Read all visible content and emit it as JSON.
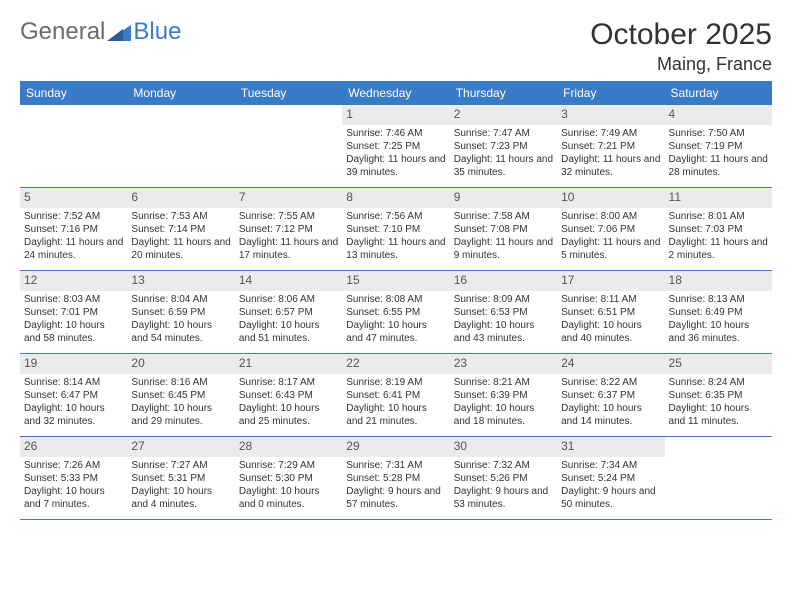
{
  "brand": {
    "part1": "General",
    "part2": "Blue"
  },
  "title": "October 2025",
  "location": "Maing, France",
  "colors": {
    "accent": "#3a7bc8",
    "header_bg": "#3a7bc8",
    "daynum_bg": "#ebebeb",
    "text": "#333333",
    "logo_gray": "#6b6b6b"
  },
  "day_headers": [
    "Sunday",
    "Monday",
    "Tuesday",
    "Wednesday",
    "Thursday",
    "Friday",
    "Saturday"
  ],
  "weeks": [
    [
      {
        "n": "",
        "sr": "",
        "ss": "",
        "dl": ""
      },
      {
        "n": "",
        "sr": "",
        "ss": "",
        "dl": ""
      },
      {
        "n": "",
        "sr": "",
        "ss": "",
        "dl": ""
      },
      {
        "n": "1",
        "sr": "Sunrise: 7:46 AM",
        "ss": "Sunset: 7:25 PM",
        "dl": "Daylight: 11 hours and 39 minutes."
      },
      {
        "n": "2",
        "sr": "Sunrise: 7:47 AM",
        "ss": "Sunset: 7:23 PM",
        "dl": "Daylight: 11 hours and 35 minutes."
      },
      {
        "n": "3",
        "sr": "Sunrise: 7:49 AM",
        "ss": "Sunset: 7:21 PM",
        "dl": "Daylight: 11 hours and 32 minutes."
      },
      {
        "n": "4",
        "sr": "Sunrise: 7:50 AM",
        "ss": "Sunset: 7:19 PM",
        "dl": "Daylight: 11 hours and 28 minutes."
      }
    ],
    [
      {
        "n": "5",
        "sr": "Sunrise: 7:52 AM",
        "ss": "Sunset: 7:16 PM",
        "dl": "Daylight: 11 hours and 24 minutes."
      },
      {
        "n": "6",
        "sr": "Sunrise: 7:53 AM",
        "ss": "Sunset: 7:14 PM",
        "dl": "Daylight: 11 hours and 20 minutes."
      },
      {
        "n": "7",
        "sr": "Sunrise: 7:55 AM",
        "ss": "Sunset: 7:12 PM",
        "dl": "Daylight: 11 hours and 17 minutes."
      },
      {
        "n": "8",
        "sr": "Sunrise: 7:56 AM",
        "ss": "Sunset: 7:10 PM",
        "dl": "Daylight: 11 hours and 13 minutes."
      },
      {
        "n": "9",
        "sr": "Sunrise: 7:58 AM",
        "ss": "Sunset: 7:08 PM",
        "dl": "Daylight: 11 hours and 9 minutes."
      },
      {
        "n": "10",
        "sr": "Sunrise: 8:00 AM",
        "ss": "Sunset: 7:06 PM",
        "dl": "Daylight: 11 hours and 5 minutes."
      },
      {
        "n": "11",
        "sr": "Sunrise: 8:01 AM",
        "ss": "Sunset: 7:03 PM",
        "dl": "Daylight: 11 hours and 2 minutes."
      }
    ],
    [
      {
        "n": "12",
        "sr": "Sunrise: 8:03 AM",
        "ss": "Sunset: 7:01 PM",
        "dl": "Daylight: 10 hours and 58 minutes."
      },
      {
        "n": "13",
        "sr": "Sunrise: 8:04 AM",
        "ss": "Sunset: 6:59 PM",
        "dl": "Daylight: 10 hours and 54 minutes."
      },
      {
        "n": "14",
        "sr": "Sunrise: 8:06 AM",
        "ss": "Sunset: 6:57 PM",
        "dl": "Daylight: 10 hours and 51 minutes."
      },
      {
        "n": "15",
        "sr": "Sunrise: 8:08 AM",
        "ss": "Sunset: 6:55 PM",
        "dl": "Daylight: 10 hours and 47 minutes."
      },
      {
        "n": "16",
        "sr": "Sunrise: 8:09 AM",
        "ss": "Sunset: 6:53 PM",
        "dl": "Daylight: 10 hours and 43 minutes."
      },
      {
        "n": "17",
        "sr": "Sunrise: 8:11 AM",
        "ss": "Sunset: 6:51 PM",
        "dl": "Daylight: 10 hours and 40 minutes."
      },
      {
        "n": "18",
        "sr": "Sunrise: 8:13 AM",
        "ss": "Sunset: 6:49 PM",
        "dl": "Daylight: 10 hours and 36 minutes."
      }
    ],
    [
      {
        "n": "19",
        "sr": "Sunrise: 8:14 AM",
        "ss": "Sunset: 6:47 PM",
        "dl": "Daylight: 10 hours and 32 minutes."
      },
      {
        "n": "20",
        "sr": "Sunrise: 8:16 AM",
        "ss": "Sunset: 6:45 PM",
        "dl": "Daylight: 10 hours and 29 minutes."
      },
      {
        "n": "21",
        "sr": "Sunrise: 8:17 AM",
        "ss": "Sunset: 6:43 PM",
        "dl": "Daylight: 10 hours and 25 minutes."
      },
      {
        "n": "22",
        "sr": "Sunrise: 8:19 AM",
        "ss": "Sunset: 6:41 PM",
        "dl": "Daylight: 10 hours and 21 minutes."
      },
      {
        "n": "23",
        "sr": "Sunrise: 8:21 AM",
        "ss": "Sunset: 6:39 PM",
        "dl": "Daylight: 10 hours and 18 minutes."
      },
      {
        "n": "24",
        "sr": "Sunrise: 8:22 AM",
        "ss": "Sunset: 6:37 PM",
        "dl": "Daylight: 10 hours and 14 minutes."
      },
      {
        "n": "25",
        "sr": "Sunrise: 8:24 AM",
        "ss": "Sunset: 6:35 PM",
        "dl": "Daylight: 10 hours and 11 minutes."
      }
    ],
    [
      {
        "n": "26",
        "sr": "Sunrise: 7:26 AM",
        "ss": "Sunset: 5:33 PM",
        "dl": "Daylight: 10 hours and 7 minutes."
      },
      {
        "n": "27",
        "sr": "Sunrise: 7:27 AM",
        "ss": "Sunset: 5:31 PM",
        "dl": "Daylight: 10 hours and 4 minutes."
      },
      {
        "n": "28",
        "sr": "Sunrise: 7:29 AM",
        "ss": "Sunset: 5:30 PM",
        "dl": "Daylight: 10 hours and 0 minutes."
      },
      {
        "n": "29",
        "sr": "Sunrise: 7:31 AM",
        "ss": "Sunset: 5:28 PM",
        "dl": "Daylight: 9 hours and 57 minutes."
      },
      {
        "n": "30",
        "sr": "Sunrise: 7:32 AM",
        "ss": "Sunset: 5:26 PM",
        "dl": "Daylight: 9 hours and 53 minutes."
      },
      {
        "n": "31",
        "sr": "Sunrise: 7:34 AM",
        "ss": "Sunset: 5:24 PM",
        "dl": "Daylight: 9 hours and 50 minutes."
      },
      {
        "n": "",
        "sr": "",
        "ss": "",
        "dl": ""
      }
    ]
  ]
}
